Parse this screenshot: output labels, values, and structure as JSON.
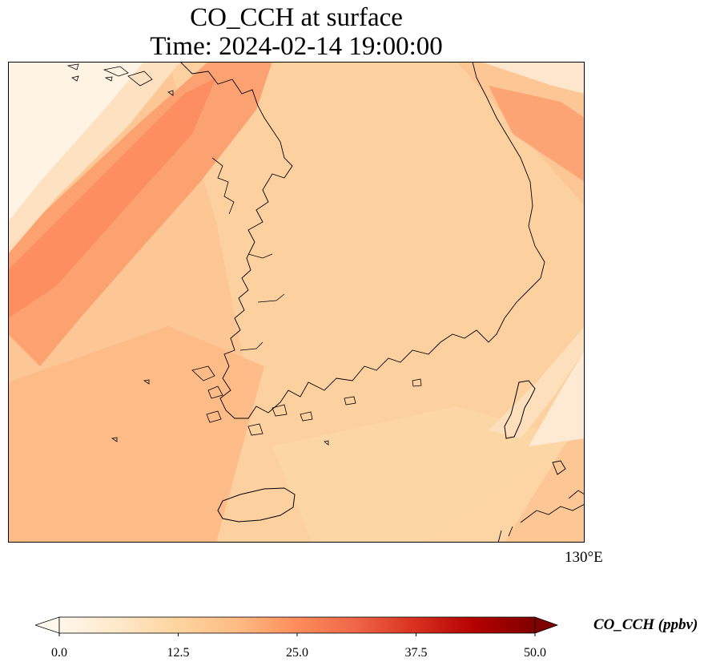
{
  "title": {
    "line1": "CO_CCH at surface",
    "line2": "Time: 2024-02-14 19:00:00"
  },
  "map": {
    "region": "Korean Peninsula (southern part)",
    "longitude_labels": [
      "130°E"
    ],
    "field": "CO_CCH",
    "coastline_color": "#000000"
  },
  "colorbar": {
    "label": "CO_CCH (ppbv)",
    "ticks": [
      "0.0",
      "12.5",
      "25.0",
      "37.5",
      "50.0"
    ],
    "min": 0,
    "max": 50,
    "extend": "both",
    "colormap": "OrRd",
    "colors": [
      "#fff7ec",
      "#fee8c8",
      "#fdd49e",
      "#fdbb84",
      "#fc8d59",
      "#ef6548",
      "#d7301f",
      "#b30000",
      "#7f0000"
    ]
  }
}
